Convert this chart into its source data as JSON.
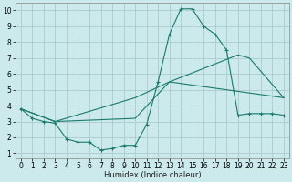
{
  "xlabel": "Humidex (Indice chaleur)",
  "background_color": "#cce9ec",
  "grid_color": "#aacccc",
  "line_color": "#1a7a6e",
  "xlim": [
    -0.5,
    23.5
  ],
  "ylim": [
    0.7,
    10.5
  ],
  "xticks": [
    0,
    1,
    2,
    3,
    4,
    5,
    6,
    7,
    8,
    9,
    10,
    11,
    12,
    13,
    14,
    15,
    16,
    17,
    18,
    19,
    20,
    21,
    22,
    23
  ],
  "yticks": [
    1,
    2,
    3,
    4,
    5,
    6,
    7,
    8,
    9,
    10
  ],
  "s1_x": [
    0,
    1,
    2,
    3,
    4,
    5,
    6,
    7,
    8,
    9,
    10,
    11,
    12,
    13,
    14,
    15,
    16,
    17,
    18,
    19,
    20,
    21,
    22,
    23
  ],
  "s1_y": [
    3.8,
    3.2,
    3.0,
    2.9,
    1.9,
    1.7,
    1.7,
    1.2,
    1.3,
    1.5,
    1.5,
    2.8,
    5.5,
    8.5,
    10.1,
    10.1,
    9.0,
    8.5,
    7.5,
    3.4,
    3.5,
    3.5,
    3.5,
    3.4
  ],
  "s2_x": [
    0,
    3,
    10,
    13,
    19,
    20,
    23
  ],
  "s2_y": [
    3.8,
    3.0,
    3.2,
    5.5,
    7.2,
    7.0,
    4.5
  ],
  "s3_x": [
    0,
    3,
    10,
    13,
    23
  ],
  "s3_y": [
    3.8,
    3.0,
    4.5,
    5.5,
    4.5
  ]
}
